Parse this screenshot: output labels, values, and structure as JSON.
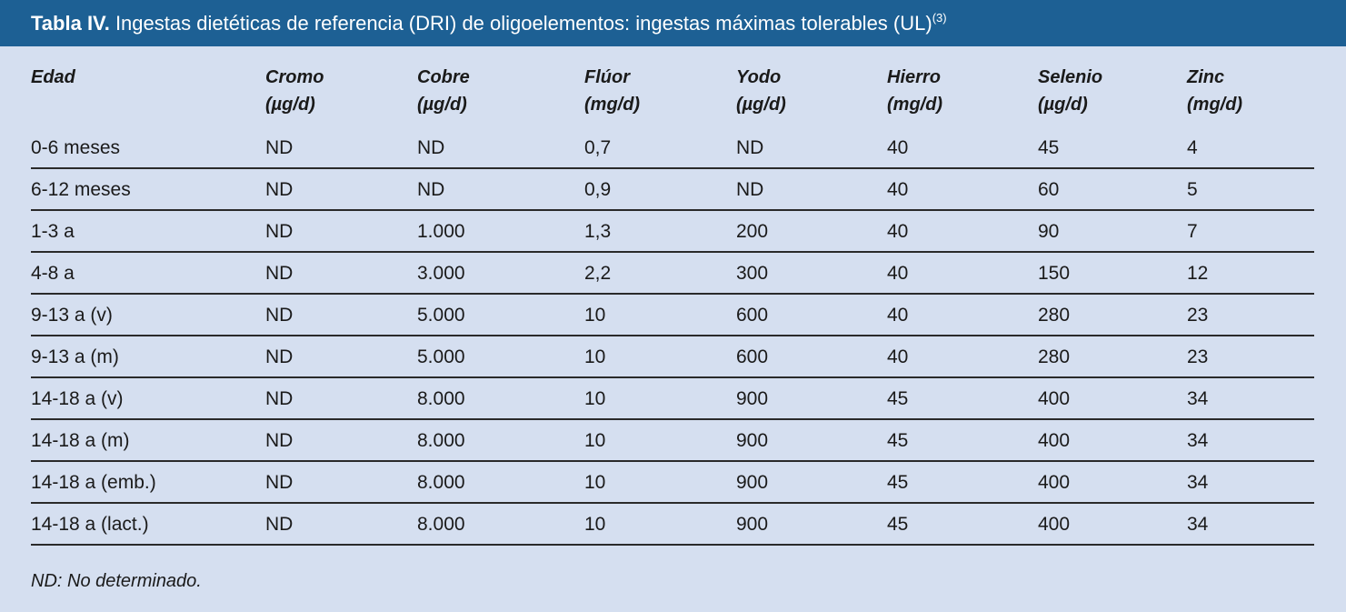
{
  "title": {
    "bold": "Tabla IV.",
    "text": " Ingestas dietéticas de referencia (DRI) de oligoelementos: ingestas máximas tolerables (UL)",
    "sup": "(3)"
  },
  "columns": [
    {
      "name": "Edad",
      "unit": ""
    },
    {
      "name": "Cromo",
      "unit": "(µg/d)"
    },
    {
      "name": "Cobre",
      "unit": "(µg/d)"
    },
    {
      "name": "Flúor",
      "unit": "(mg/d)"
    },
    {
      "name": "Yodo",
      "unit": "(µg/d)"
    },
    {
      "name": "Hierro",
      "unit": "(mg/d)"
    },
    {
      "name": "Selenio",
      "unit": "(µg/d)"
    },
    {
      "name": "Zinc",
      "unit": "(mg/d)"
    }
  ],
  "rows": [
    [
      "0-6 meses",
      "ND",
      "ND",
      "0,7",
      "ND",
      "40",
      "45",
      "4"
    ],
    [
      "6-12 meses",
      "ND",
      "ND",
      "0,9",
      "ND",
      "40",
      "60",
      "5"
    ],
    [
      "1-3 a",
      "ND",
      "1.000",
      "1,3",
      "200",
      "40",
      "90",
      "7"
    ],
    [
      "4-8 a",
      "ND",
      "3.000",
      "2,2",
      "300",
      "40",
      "150",
      "12"
    ],
    [
      "9-13 a  (v)",
      "ND",
      "5.000",
      "10",
      "600",
      "40",
      "280",
      "23"
    ],
    [
      "9-13 a  (m)",
      "ND",
      "5.000",
      "10",
      "600",
      "40",
      "280",
      "23"
    ],
    [
      "14-18 a  (v)",
      "ND",
      "8.000",
      "10",
      "900",
      "45",
      "400",
      "34"
    ],
    [
      "14-18 a  (m)",
      "ND",
      "8.000",
      "10",
      "900",
      "45",
      "400",
      "34"
    ],
    [
      "14-18 a  (emb.)",
      "ND",
      "8.000",
      "10",
      "900",
      "45",
      "400",
      "34"
    ],
    [
      "14-18 a  (lact.)",
      "ND",
      "8.000",
      "10",
      "900",
      "45",
      "400",
      "34"
    ]
  ],
  "footnote": "ND: No determinado.",
  "colors": {
    "header_bg": "#1d6094",
    "page_bg": "#d5dff0"
  }
}
